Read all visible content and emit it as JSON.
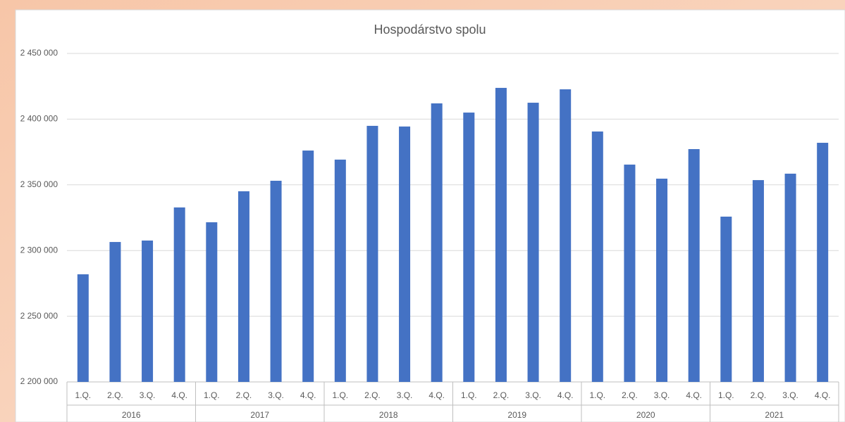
{
  "chart_data": {
    "type": "bar",
    "title": "Hospodárstvo spolu",
    "categories": [
      "1.Q.",
      "2.Q.",
      "3.Q.",
      "4.Q.",
      "1.Q.",
      "2.Q.",
      "3.Q.",
      "4.Q.",
      "1.Q.",
      "2.Q.",
      "3.Q.",
      "4.Q.",
      "1.Q.",
      "2.Q.",
      "3.Q.",
      "4.Q.",
      "1.Q.",
      "2.Q.",
      "3.Q.",
      "4.Q.",
      "1.Q.",
      "2.Q.",
      "3.Q.",
      "4.Q."
    ],
    "groups": [
      "2016",
      "2017",
      "2018",
      "2019",
      "2020",
      "2021"
    ],
    "values": [
      2281900,
      2306500,
      2307600,
      2332800,
      2321500,
      2345100,
      2353100,
      2376100,
      2369200,
      2394900,
      2394400,
      2412000,
      2405000,
      2423800,
      2412500,
      2422700,
      2390600,
      2365400,
      2354700,
      2377200,
      2325800,
      2353600,
      2358500,
      2382000
    ],
    "color": "#4472c4",
    "ylim": [
      2200000,
      2450000
    ],
    "yticks": [
      {
        "value": 2200000,
        "label": "2 200 000"
      },
      {
        "value": 2250000,
        "label": "2 250 000"
      },
      {
        "value": 2300000,
        "label": "2 300 000"
      },
      {
        "value": 2350000,
        "label": "2 350 000"
      },
      {
        "value": 2400000,
        "label": "2 400 000"
      },
      {
        "value": 2450000,
        "label": "2 450 000"
      }
    ],
    "grid": true
  }
}
